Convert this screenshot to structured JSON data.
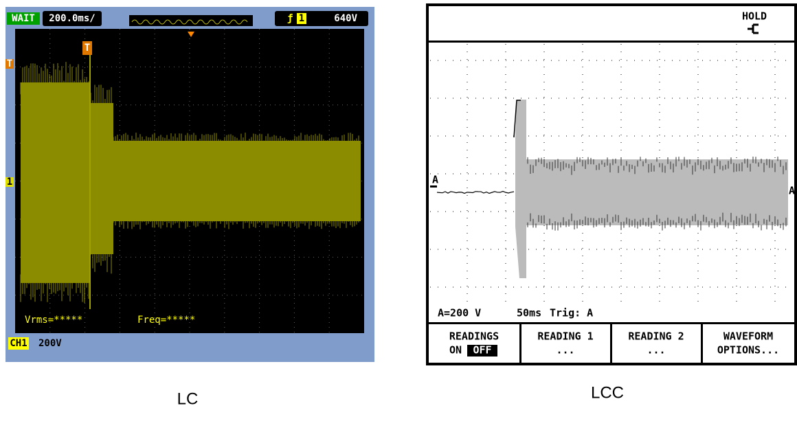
{
  "left": {
    "status": "WAIT",
    "timebase": "200.0ms/",
    "trigger_channel": "1",
    "trigger_level": "640V",
    "trigger_marker": "T",
    "channel_marker": "1",
    "measurements": [
      "Vrms=*****",
      "Freq=*****"
    ],
    "channel": "CH1",
    "scale": "200V",
    "caption": "LC"
  },
  "right": {
    "hold": "HOLD",
    "trace_label": "A",
    "scale": "A=200 V",
    "timebase": "50ms",
    "trigger": "Trig: A",
    "buttons": [
      [
        "READINGS",
        "ON",
        "OFF"
      ],
      [
        "READING 1",
        "..."
      ],
      [
        "READING 2",
        "..."
      ],
      [
        "WAVEFORM",
        "OPTIONS..."
      ]
    ],
    "caption": "LCC"
  }
}
